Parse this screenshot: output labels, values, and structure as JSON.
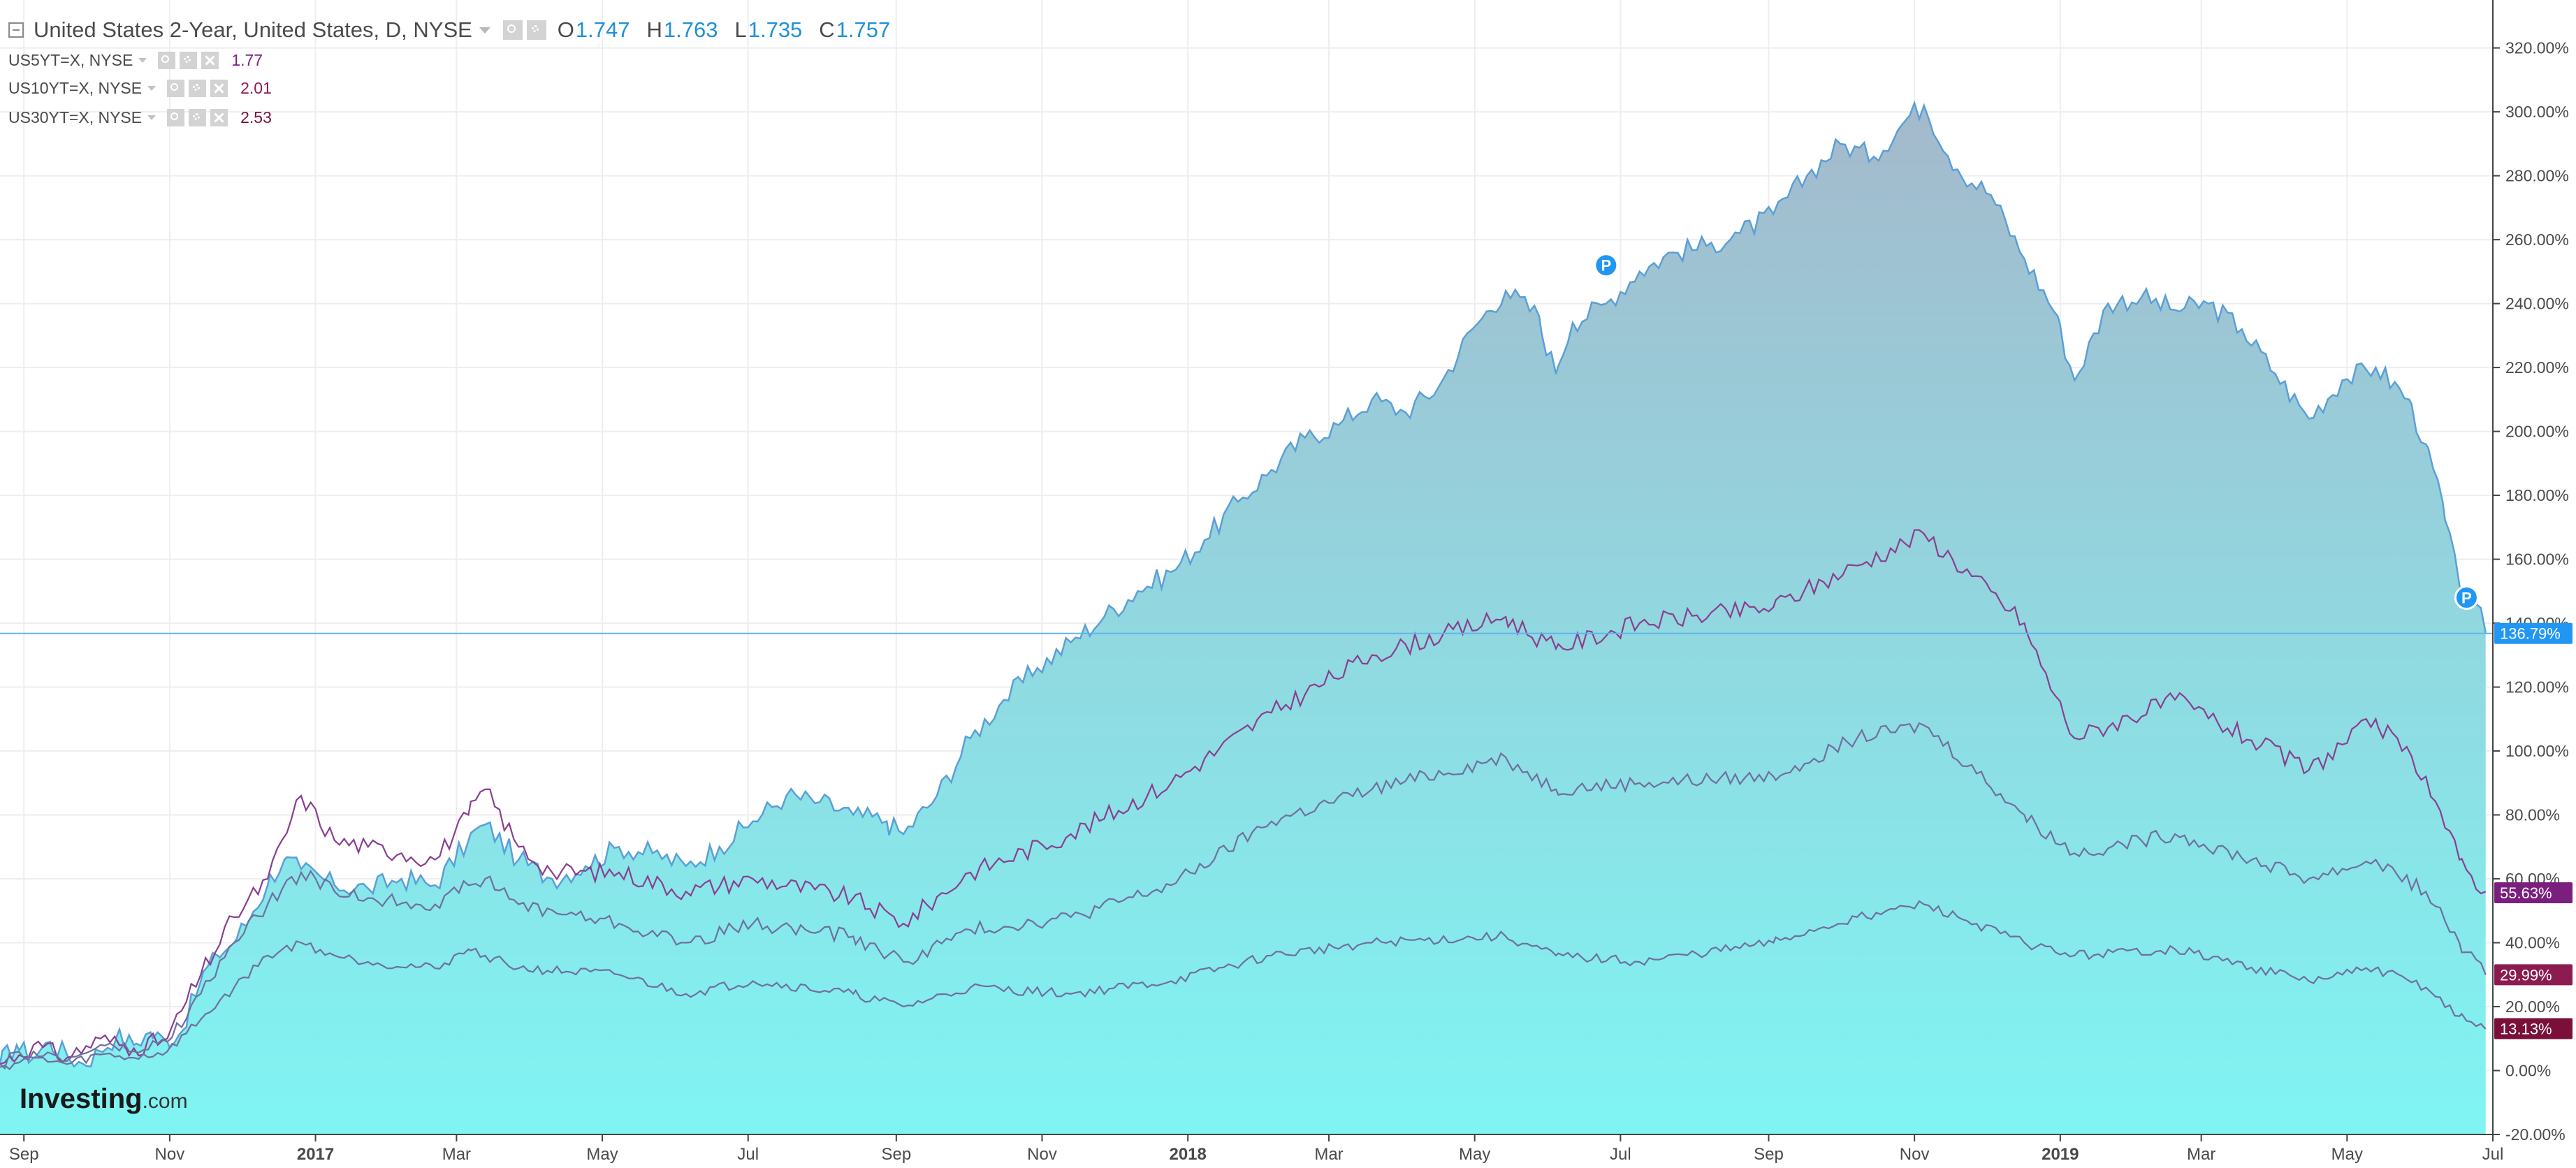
{
  "header": {
    "title": "United States 2-Year, United States, D, NYSE",
    "ohlc": [
      {
        "key": "O",
        "value": "1.747"
      },
      {
        "key": "H",
        "value": "1.763"
      },
      {
        "key": "L",
        "value": "1.735"
      },
      {
        "key": "C",
        "value": "1.757"
      }
    ]
  },
  "comparisons": [
    {
      "label": "US5YT=X, NYSE",
      "value": "1.77",
      "color": "#7b1f7e"
    },
    {
      "label": "US10YT=X, NYSE",
      "value": "2.01",
      "color": "#8c1b4f"
    },
    {
      "label": "US30YT=X, NYSE",
      "value": "2.53",
      "color": "#7a0f3a"
    }
  ],
  "watermark": {
    "brand": "Investing",
    "suffix": ".com"
  },
  "colors": {
    "fill_top": "#a4b9cc",
    "fill_bottom": "#7ff5f3",
    "line": "#5b9fd6",
    "compare_line": "#6f6f9e",
    "current_label": "#2196f3",
    "marker": "#2196f3",
    "grid": "#eeeeee",
    "axis": "#444444"
  },
  "chart_data": {
    "type": "area",
    "y_unit": "% change",
    "y_ticks": [
      "320.00%",
      "300.00%",
      "280.00%",
      "260.00%",
      "240.00%",
      "220.00%",
      "200.00%",
      "180.00%",
      "160.00%",
      "140.00%",
      "120.00%",
      "100.00%",
      "80.00%",
      "60.00%",
      "40.00%",
      "20.00%",
      "0.00%",
      "-20.00%"
    ],
    "ylim": [
      -20,
      335
    ],
    "x_ticks": [
      {
        "label": "Sep",
        "date": "2016-09-01",
        "bold": false
      },
      {
        "label": "Nov",
        "date": "2016-11-01",
        "bold": false
      },
      {
        "label": "2017",
        "date": "2017-01-01",
        "bold": true
      },
      {
        "label": "Mar",
        "date": "2017-03-01",
        "bold": false
      },
      {
        "label": "May",
        "date": "2017-05-01",
        "bold": false
      },
      {
        "label": "Jul",
        "date": "2017-07-01",
        "bold": false
      },
      {
        "label": "Sep",
        "date": "2017-09-01",
        "bold": false
      },
      {
        "label": "Nov",
        "date": "2017-11-01",
        "bold": false
      },
      {
        "label": "2018",
        "date": "2018-01-01",
        "bold": true
      },
      {
        "label": "Mar",
        "date": "2018-03-01",
        "bold": false
      },
      {
        "label": "May",
        "date": "2018-05-01",
        "bold": false
      },
      {
        "label": "Jul",
        "date": "2018-07-01",
        "bold": false
      },
      {
        "label": "Sep",
        "date": "2018-09-01",
        "bold": false
      },
      {
        "label": "Nov",
        "date": "2018-11-01",
        "bold": false
      },
      {
        "label": "2019",
        "date": "2019-01-01",
        "bold": true
      },
      {
        "label": "Mar",
        "date": "2019-03-01",
        "bold": false
      },
      {
        "label": "May",
        "date": "2019-05-01",
        "bold": false
      },
      {
        "label": "Jul",
        "date": "2019-07-01",
        "bold": false
      }
    ],
    "xlim": [
      "2016-08-22",
      "2019-07-01"
    ],
    "grid": true,
    "current_line": {
      "value": 136.79,
      "label": "136.79%"
    },
    "price_labels": [
      {
        "value": 55.63,
        "label": "55.63%",
        "color": "#7b1f7e"
      },
      {
        "value": 29.99,
        "label": "29.99%",
        "color": "#8c1b4f"
      },
      {
        "value": 13.13,
        "label": "13.13%",
        "color": "#7a0f3a"
      }
    ],
    "markers": [
      {
        "date": "2018-06-25",
        "value": 252,
        "text": "P"
      },
      {
        "date": "2019-06-20",
        "value": 148,
        "text": "P"
      }
    ],
    "series": [
      {
        "role": "main",
        "points": [
          [
            "2016-08-22",
            2
          ],
          [
            "2016-08-29",
            8
          ],
          [
            "2016-09-05",
            4
          ],
          [
            "2016-09-12",
            9
          ],
          [
            "2016-09-19",
            5
          ],
          [
            "2016-09-26",
            2
          ],
          [
            "2016-10-03",
            6
          ],
          [
            "2016-10-10",
            11
          ],
          [
            "2016-10-17",
            8
          ],
          [
            "2016-10-24",
            12
          ],
          [
            "2016-10-31",
            9
          ],
          [
            "2016-11-07",
            13
          ],
          [
            "2016-11-14",
            28
          ],
          [
            "2016-11-21",
            36
          ],
          [
            "2016-11-28",
            40
          ],
          [
            "2016-12-05",
            48
          ],
          [
            "2016-12-12",
            58
          ],
          [
            "2016-12-19",
            66
          ],
          [
            "2016-12-26",
            63
          ],
          [
            "2017-01-09",
            58
          ],
          [
            "2017-01-23",
            57
          ],
          [
            "2017-02-06",
            60
          ],
          [
            "2017-02-20",
            58
          ],
          [
            "2017-03-06",
            72
          ],
          [
            "2017-03-13",
            77
          ],
          [
            "2017-03-27",
            66
          ],
          [
            "2017-04-10",
            60
          ],
          [
            "2017-04-24",
            64
          ],
          [
            "2017-05-08",
            70
          ],
          [
            "2017-05-22",
            68
          ],
          [
            "2017-06-05",
            64
          ],
          [
            "2017-06-19",
            70
          ],
          [
            "2017-07-03",
            78
          ],
          [
            "2017-07-17",
            86
          ],
          [
            "2017-07-31",
            84
          ],
          [
            "2017-08-14",
            80
          ],
          [
            "2017-08-28",
            78
          ],
          [
            "2017-09-04",
            74
          ],
          [
            "2017-09-18",
            86
          ],
          [
            "2017-10-02",
            104
          ],
          [
            "2017-10-16",
            116
          ],
          [
            "2017-10-30",
            126
          ],
          [
            "2017-11-13",
            134
          ],
          [
            "2017-11-27",
            142
          ],
          [
            "2017-12-11",
            150
          ],
          [
            "2017-12-25",
            156
          ],
          [
            "2018-01-08",
            166
          ],
          [
            "2018-01-22",
            178
          ],
          [
            "2018-02-05",
            188
          ],
          [
            "2018-02-19",
            198
          ],
          [
            "2018-03-05",
            202
          ],
          [
            "2018-03-19",
            210
          ],
          [
            "2018-04-02",
            206
          ],
          [
            "2018-04-16",
            214
          ],
          [
            "2018-04-30",
            232
          ],
          [
            "2018-05-14",
            244
          ],
          [
            "2018-05-28",
            236
          ],
          [
            "2018-06-04",
            218
          ],
          [
            "2018-06-11",
            234
          ],
          [
            "2018-06-25",
            240
          ],
          [
            "2018-07-09",
            250
          ],
          [
            "2018-07-23",
            256
          ],
          [
            "2018-08-06",
            258
          ],
          [
            "2018-08-20",
            262
          ],
          [
            "2018-09-03",
            268
          ],
          [
            "2018-09-17",
            280
          ],
          [
            "2018-10-01",
            290
          ],
          [
            "2018-10-15",
            286
          ],
          [
            "2018-10-29",
            298
          ],
          [
            "2018-11-05",
            302
          ],
          [
            "2018-11-19",
            282
          ],
          [
            "2018-12-03",
            274
          ],
          [
            "2018-12-17",
            254
          ],
          [
            "2018-12-31",
            236
          ],
          [
            "2019-01-07",
            216
          ],
          [
            "2019-01-21",
            240
          ],
          [
            "2019-02-04",
            242
          ],
          [
            "2019-02-18",
            238
          ],
          [
            "2019-03-04",
            240
          ],
          [
            "2019-03-18",
            232
          ],
          [
            "2019-04-01",
            218
          ],
          [
            "2019-04-15",
            204
          ],
          [
            "2019-04-29",
            216
          ],
          [
            "2019-05-13",
            220
          ],
          [
            "2019-05-27",
            210
          ],
          [
            "2019-06-03",
            196
          ],
          [
            "2019-06-10",
            178
          ],
          [
            "2019-06-17",
            152
          ],
          [
            "2019-06-24",
            146
          ],
          [
            "2019-06-28",
            137
          ]
        ]
      },
      {
        "role": "comparison",
        "name": "US5YT=X, NYSE",
        "points": [
          [
            "2016-08-22",
            2
          ],
          [
            "2016-09-05",
            8
          ],
          [
            "2016-09-19",
            4
          ],
          [
            "2016-10-03",
            10
          ],
          [
            "2016-10-17",
            7
          ],
          [
            "2016-10-31",
            10
          ],
          [
            "2016-11-14",
            30
          ],
          [
            "2016-11-28",
            48
          ],
          [
            "2016-12-12",
            60
          ],
          [
            "2016-12-26",
            86
          ],
          [
            "2017-01-09",
            72
          ],
          [
            "2017-01-23",
            70
          ],
          [
            "2017-02-06",
            68
          ],
          [
            "2017-02-20",
            66
          ],
          [
            "2017-03-06",
            80
          ],
          [
            "2017-03-13",
            88
          ],
          [
            "2017-03-27",
            70
          ],
          [
            "2017-04-10",
            62
          ],
          [
            "2017-05-08",
            62
          ],
          [
            "2017-06-05",
            56
          ],
          [
            "2017-07-03",
            60
          ],
          [
            "2017-08-14",
            54
          ],
          [
            "2017-09-04",
            46
          ],
          [
            "2017-10-02",
            62
          ],
          [
            "2017-11-13",
            74
          ],
          [
            "2017-12-25",
            90
          ],
          [
            "2018-02-05",
            112
          ],
          [
            "2018-03-19",
            130
          ],
          [
            "2018-05-14",
            142
          ],
          [
            "2018-06-04",
            132
          ],
          [
            "2018-07-09",
            140
          ],
          [
            "2018-09-03",
            145
          ],
          [
            "2018-10-08",
            158
          ],
          [
            "2018-11-05",
            168
          ],
          [
            "2018-12-17",
            140
          ],
          [
            "2019-01-07",
            104
          ],
          [
            "2019-02-18",
            116
          ],
          [
            "2019-04-15",
            94
          ],
          [
            "2019-05-13",
            110
          ],
          [
            "2019-06-03",
            92
          ],
          [
            "2019-06-17",
            66
          ],
          [
            "2019-06-28",
            56
          ]
        ]
      },
      {
        "role": "comparison",
        "name": "US10YT=X, NYSE",
        "points": [
          [
            "2016-08-22",
            2
          ],
          [
            "2016-09-05",
            6
          ],
          [
            "2016-09-19",
            3
          ],
          [
            "2016-10-03",
            8
          ],
          [
            "2016-10-17",
            6
          ],
          [
            "2016-10-31",
            9
          ],
          [
            "2016-11-14",
            24
          ],
          [
            "2016-11-28",
            40
          ],
          [
            "2016-12-12",
            52
          ],
          [
            "2016-12-26",
            62
          ],
          [
            "2017-01-09",
            56
          ],
          [
            "2017-01-23",
            54
          ],
          [
            "2017-02-20",
            52
          ],
          [
            "2017-03-06",
            58
          ],
          [
            "2017-03-13",
            60
          ],
          [
            "2017-03-27",
            52
          ],
          [
            "2017-05-08",
            46
          ],
          [
            "2017-06-05",
            40
          ],
          [
            "2017-07-03",
            46
          ],
          [
            "2017-08-14",
            42
          ],
          [
            "2017-09-04",
            34
          ],
          [
            "2017-10-02",
            44
          ],
          [
            "2017-11-13",
            48
          ],
          [
            "2017-12-25",
            58
          ],
          [
            "2018-02-05",
            78
          ],
          [
            "2018-03-19",
            88
          ],
          [
            "2018-05-14",
            98
          ],
          [
            "2018-06-04",
            88
          ],
          [
            "2018-07-09",
            90
          ],
          [
            "2018-09-03",
            92
          ],
          [
            "2018-10-08",
            104
          ],
          [
            "2018-11-05",
            108
          ],
          [
            "2018-12-17",
            80
          ],
          [
            "2019-01-07",
            68
          ],
          [
            "2019-02-18",
            74
          ],
          [
            "2019-04-15",
            60
          ],
          [
            "2019-05-13",
            66
          ],
          [
            "2019-06-03",
            56
          ],
          [
            "2019-06-17",
            40
          ],
          [
            "2019-06-28",
            30
          ]
        ]
      },
      {
        "role": "comparison",
        "name": "US30YT=X, NYSE",
        "points": [
          [
            "2016-08-22",
            1
          ],
          [
            "2016-09-05",
            4
          ],
          [
            "2016-09-19",
            2
          ],
          [
            "2016-10-03",
            5
          ],
          [
            "2016-10-17",
            4
          ],
          [
            "2016-10-31",
            6
          ],
          [
            "2016-11-14",
            16
          ],
          [
            "2016-11-28",
            26
          ],
          [
            "2016-12-12",
            36
          ],
          [
            "2016-12-26",
            40
          ],
          [
            "2017-01-09",
            36
          ],
          [
            "2017-01-23",
            34
          ],
          [
            "2017-02-20",
            32
          ],
          [
            "2017-03-06",
            38
          ],
          [
            "2017-03-13",
            36
          ],
          [
            "2017-03-27",
            32
          ],
          [
            "2017-05-08",
            30
          ],
          [
            "2017-06-05",
            24
          ],
          [
            "2017-07-03",
            28
          ],
          [
            "2017-08-14",
            24
          ],
          [
            "2017-09-04",
            20
          ],
          [
            "2017-10-02",
            26
          ],
          [
            "2017-11-13",
            24
          ],
          [
            "2017-12-25",
            28
          ],
          [
            "2018-02-05",
            36
          ],
          [
            "2018-03-19",
            40
          ],
          [
            "2018-05-14",
            42
          ],
          [
            "2018-06-04",
            36
          ],
          [
            "2018-07-09",
            34
          ],
          [
            "2018-09-03",
            40
          ],
          [
            "2018-10-08",
            48
          ],
          [
            "2018-11-05",
            52
          ],
          [
            "2018-12-17",
            40
          ],
          [
            "2019-01-07",
            36
          ],
          [
            "2019-02-18",
            38
          ],
          [
            "2019-04-15",
            28
          ],
          [
            "2019-05-13",
            32
          ],
          [
            "2019-06-03",
            26
          ],
          [
            "2019-06-17",
            17
          ],
          [
            "2019-06-28",
            13
          ]
        ]
      }
    ]
  }
}
